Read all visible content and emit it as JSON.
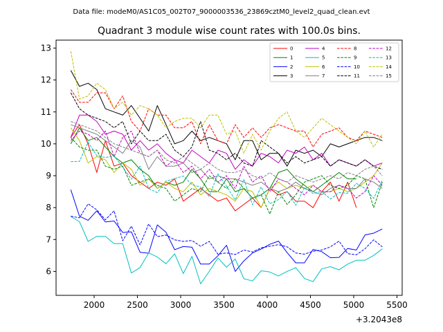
{
  "suptitle": "Data file: modeM0/AS1C05_002T07_9000003536_23869cztM0_level2_quad_clean.evt",
  "chart_data": {
    "type": "line",
    "title": "Quadrant 3 module wise count rates with 100.0s bins.",
    "xlabel": "",
    "ylabel": "",
    "x_offset_label": "+3.2043e8",
    "xlim": [
      1560,
      5560
    ],
    "ylim": [
      5.25,
      13.25
    ],
    "x_ticks": [
      2000,
      2500,
      3000,
      3500,
      4000,
      4500,
      5000,
      5500
    ],
    "x_tick_labels": [
      "2000",
      "2500",
      "3000",
      "3500",
      "4000",
      "4500",
      "5000",
      "5500"
    ],
    "y_ticks": [
      6,
      7,
      8,
      9,
      10,
      11,
      12,
      13
    ],
    "y_tick_labels": [
      "6",
      "7",
      "8",
      "9",
      "10",
      "11",
      "12",
      "13"
    ],
    "x_start": 1730,
    "x_step": 100,
    "legend_position": "top-right",
    "series": [
      {
        "name": "0",
        "color": "#ff0000",
        "style": "solid",
        "values": [
          10.2,
          10.6,
          10.0,
          9.1,
          10.1,
          9.3,
          9.4,
          9.0,
          8.8,
          8.6,
          8.8,
          8.7,
          8.9,
          8.2,
          8.4,
          8.6,
          8.4,
          8.2,
          8.3,
          7.9,
          8.1,
          8.3,
          8.0,
          8.6,
          8.4,
          8.5,
          8.2,
          8.2,
          8.0,
          8.5,
          8.8,
          8.2,
          8.8,
          8.0
        ]
      },
      {
        "name": "1",
        "color": "#008000",
        "style": "solid",
        "values": [
          10.0,
          10.5,
          10.1,
          10.2,
          9.9,
          9.6,
          9.4,
          9.5,
          9.2,
          9.0,
          8.6,
          8.8,
          8.7,
          8.8,
          9.2,
          8.9,
          8.5,
          8.5,
          8.9,
          8.5,
          8.6,
          8.3,
          8.4,
          8.6,
          9.1,
          9.2,
          8.9,
          8.7,
          8.5,
          8.7,
          8.9,
          9.1,
          8.9,
          8.9
        ]
      },
      {
        "name": "2",
        "color": "#0000ff",
        "style": "solid",
        "values": [
          8.56,
          7.73,
          7.6,
          7.9,
          7.55,
          7.58,
          7.22,
          7.24,
          6.6,
          6.57,
          7.46,
          7.23,
          6.68,
          6.78,
          6.76,
          6.23,
          6.23,
          6.49,
          6.82,
          6.0,
          6.33,
          6.58,
          6.7,
          6.85,
          6.95,
          6.59,
          6.27,
          6.27,
          6.69,
          6.62,
          6.43,
          6.44,
          6.72,
          6.67,
          7.14,
          7.2,
          7.33
        ]
      },
      {
        "name": "3",
        "color": "#000000",
        "style": "solid",
        "values": [
          12.3,
          11.8,
          11.9,
          11.7,
          11.1,
          11.0,
          10.9,
          11.2,
          10.8,
          10.4,
          11.2,
          10.6,
          10.0,
          10.1,
          10.4,
          10.1,
          10.2,
          10.1,
          10.0,
          9.5,
          10.1,
          10.1,
          9.5,
          9.7,
          9.7,
          9.3,
          9.8,
          9.7,
          9.8,
          9.6,
          10.0,
          9.9,
          10.0,
          10.1,
          10.2,
          10.2,
          10.1
        ]
      },
      {
        "name": "4",
        "color": "#bf00bf",
        "style": "solid",
        "values": [
          10.2,
          10.9,
          10.9,
          10.7,
          10.3,
          10.4,
          10.3,
          9.8,
          10.1,
          9.8,
          10.0,
          9.7,
          9.5,
          9.4,
          9.8,
          9.6,
          9.4,
          9.8,
          9.7,
          9.2,
          9.5,
          9.3,
          9.7,
          9.6,
          9.4,
          9.8,
          9.7,
          9.9,
          9.5,
          9.7,
          9.3,
          9.5,
          9.4,
          9.3,
          9.5,
          9.3,
          9.4
        ]
      },
      {
        "name": "5",
        "color": "#00bfbf",
        "style": "solid",
        "values": [
          7.72,
          7.56,
          6.94,
          7.1,
          7.1,
          6.87,
          6.87,
          5.95,
          6.12,
          6.58,
          6.45,
          6.24,
          6.55,
          5.93,
          6.47,
          5.61,
          6.0,
          6.42,
          6.13,
          6.39,
          5.77,
          5.7,
          6.02,
          5.98,
          5.86,
          6.0,
          6.12,
          5.78,
          5.68,
          6.08,
          6.15,
          6.05,
          6.23,
          6.35,
          6.35,
          6.5,
          6.71
        ]
      },
      {
        "name": "6",
        "color": "#bfbf00",
        "style": "solid",
        "values": [
          10.5,
          10.1,
          9.4,
          9.6,
          9.5,
          9.1,
          9.4,
          9.2,
          8.7,
          8.9,
          8.6,
          8.8,
          8.6,
          8.5,
          8.8,
          8.4,
          8.6,
          8.5,
          8.4,
          8.2,
          8.6,
          8.5,
          8.0,
          8.6,
          8.8,
          8.6,
          8.7,
          8.6,
          8.7,
          8.5,
          8.5,
          8.6,
          8.5,
          8.6,
          8.8,
          9.0,
          9.4
        ]
      },
      {
        "name": "7",
        "color": "#808080",
        "style": "solid",
        "values": [
          10.6,
          10.5,
          10.4,
          10.3,
          10.1,
          9.9,
          9.7,
          10.1,
          9.9,
          9.2,
          9.6,
          9.3,
          9.3,
          9.4,
          9.1,
          9.2,
          8.9,
          9.0,
          8.9,
          8.9,
          8.8,
          8.7,
          8.8,
          8.6,
          8.5,
          8.6,
          8.8,
          8.6,
          8.5,
          8.4,
          8.6,
          8.7,
          8.6,
          8.6,
          8.9,
          8.8,
          8.6
        ]
      },
      {
        "name": "8",
        "color": "#ff0000",
        "style": "dashed",
        "values": [
          11.7,
          11.3,
          11.3,
          11.6,
          11.6,
          11.1,
          11.5,
          10.7,
          10.4,
          11.1,
          10.9,
          10.9,
          10.5,
          10.5,
          10.7,
          10.0,
          10.6,
          10.1,
          10.0,
          10.6,
          10.2,
          10.5,
          10.2,
          10.5,
          10.6,
          10.5,
          10.4,
          10.4,
          9.9,
          10.3,
          10.4,
          10.5,
          10.2,
          10.1,
          10.4,
          10.3,
          10.2
        ]
      },
      {
        "name": "9",
        "color": "#008000",
        "style": "dashed",
        "values": [
          10.2,
          9.9,
          9.8,
          9.8,
          9.3,
          9.2,
          9.3,
          8.7,
          8.8,
          8.9,
          8.7,
          8.6,
          8.2,
          8.4,
          8.6,
          8.5,
          9.0,
          8.8,
          8.6,
          8.9,
          8.6,
          8.3,
          8.4,
          7.8,
          8.5,
          8.1,
          8.4,
          8.8,
          8.9,
          9.0,
          8.7,
          8.6,
          8.7,
          9.0,
          8.9,
          8.0,
          8.8
        ]
      },
      {
        "name": "10",
        "color": "#0000ff",
        "style": "dashed",
        "values": [
          7.73,
          7.68,
          8.12,
          7.93,
          7.62,
          7.9,
          6.96,
          7.42,
          6.83,
          7.49,
          7.09,
          7.14,
          6.99,
          6.94,
          6.97,
          6.79,
          6.94,
          6.54,
          6.58,
          6.53,
          6.67,
          6.61,
          6.74,
          6.79,
          6.84,
          6.77,
          6.58,
          6.54,
          6.63,
          6.67,
          6.77,
          6.95,
          6.56,
          6.52,
          6.71,
          6.99,
          6.77
        ]
      },
      {
        "name": "11",
        "color": "#000000",
        "style": "dashed",
        "values": [
          11.6,
          11.1,
          10.9,
          10.8,
          10.7,
          10.5,
          10.7,
          10.0,
          10.4,
          10.1,
          10.1,
          10.3,
          9.8,
          9.6,
          9.9,
          10.7,
          9.8,
          9.7,
          9.5,
          9.7,
          9.4,
          9.3,
          10.1,
          9.9,
          9.7,
          9.4,
          9.6,
          9.4,
          9.5,
          9.6,
          9.3,
          9.5,
          9.4,
          9.3,
          9.5,
          9.3,
          9.2
        ]
      },
      {
        "name": "12",
        "color": "#bf00bf",
        "style": "dashed",
        "values": [
          10.1,
          10.4,
          10.3,
          10.1,
          10.4,
          9.6,
          10.2,
          10.4,
          9.7,
          9.6,
          9.8,
          9.3,
          9.5,
          9.1,
          9.3,
          8.9,
          9.2,
          8.8,
          9.0,
          8.6,
          9.3,
          8.8,
          9.0,
          8.5,
          8.9,
          8.8,
          8.6,
          8.4,
          8.7,
          8.5,
          8.5,
          8.7,
          8.6,
          8.3,
          8.5,
          9.0,
          8.7
        ]
      },
      {
        "name": "13",
        "color": "#00bfbf",
        "style": "dashed",
        "values": [
          9.44,
          9.45,
          10.05,
          9.63,
          9.57,
          9.62,
          9.27,
          8.89,
          9.3,
          8.6,
          8.47,
          8.83,
          8.91,
          8.99,
          8.72,
          8.64,
          8.35,
          9.06,
          8.67,
          8.24,
          8.89,
          8.09,
          8.65,
          8.12,
          8.25,
          8.51,
          8.07,
          8.63,
          8.44,
          8.51,
          8.27,
          8.47,
          8.45,
          8.76,
          8.6,
          8.29,
          8.86
        ]
      },
      {
        "name": "14",
        "color": "#bfbf00",
        "style": "dashed",
        "values": [
          12.9,
          11.4,
          11.5,
          11.9,
          11.7,
          11.1,
          11.3,
          10.9,
          11.2,
          11.1,
          10.9,
          10.5,
          10.7,
          10.8,
          10.8,
          10.5,
          10.9,
          10.9,
          10.3,
          10.4,
          9.7,
          10.3,
          9.8,
          10.4,
          10.8,
          11.0,
          10.4,
          10.2,
          10.5,
          10.8,
          10.6,
          10.4,
          10.2,
          10.0,
          10.4,
          9.9,
          10.3
        ]
      },
      {
        "name": "15",
        "color": "#808080",
        "style": "dashed",
        "values": [
          10.7,
          10.6,
          10.5,
          10.4,
          10.2,
          10.0,
          9.9,
          9.8,
          9.7,
          9.6,
          9.8,
          9.5,
          9.4,
          9.6,
          9.4,
          9.2,
          9.4,
          9.2,
          9.1,
          9.1,
          9.2,
          9.0,
          8.9,
          9.1,
          8.9,
          8.8,
          9.0,
          8.9,
          8.8,
          8.9,
          9.0,
          8.9,
          9.1,
          9.0,
          9.2,
          9.3,
          9.0
        ]
      }
    ]
  }
}
